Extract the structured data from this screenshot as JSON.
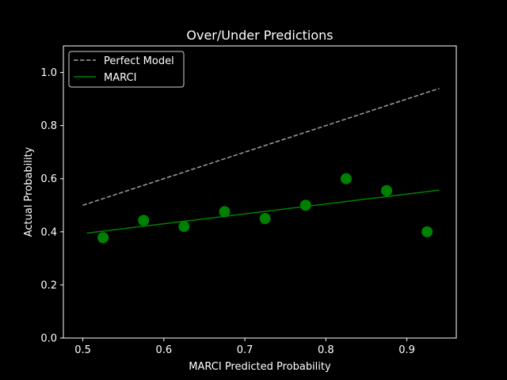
{
  "chart_data": {
    "type": "scatter",
    "title": "Over/Under Predictions",
    "xlabel": "MARCI Predicted Probability",
    "ylabel": "Actual Probability",
    "xlim": [
      0.476,
      0.961
    ],
    "ylim": [
      0.0,
      1.1
    ],
    "xticks": [
      0.5,
      0.6,
      0.7,
      0.8,
      0.9
    ],
    "xtick_labels": [
      "0.5",
      "0.6",
      "0.7",
      "0.8",
      "0.9"
    ],
    "yticks": [
      0.0,
      0.2,
      0.4,
      0.6,
      0.8,
      1.0
    ],
    "ytick_labels": [
      "0.0",
      "0.2",
      "0.4",
      "0.6",
      "0.8",
      "1.0"
    ],
    "grid": false,
    "legend_position": "top-left",
    "series": [
      {
        "name": "Perfect Model",
        "kind": "line",
        "style": "dashed",
        "color": "#a0a0a0",
        "x": [
          0.5,
          0.94
        ],
        "y": [
          0.5,
          0.94
        ]
      },
      {
        "name": "MARCI",
        "kind": "line",
        "style": "solid",
        "color": "#008000",
        "x": [
          0.505,
          0.94
        ],
        "y": [
          0.395,
          0.557
        ]
      },
      {
        "kind": "scatter",
        "color": "#008000",
        "x": [
          0.525,
          0.575,
          0.625,
          0.675,
          0.725,
          0.775,
          0.825,
          0.875,
          0.925
        ],
        "y": [
          0.378,
          0.443,
          0.42,
          0.476,
          0.45,
          0.5,
          0.6,
          0.555,
          0.4
        ]
      }
    ]
  }
}
